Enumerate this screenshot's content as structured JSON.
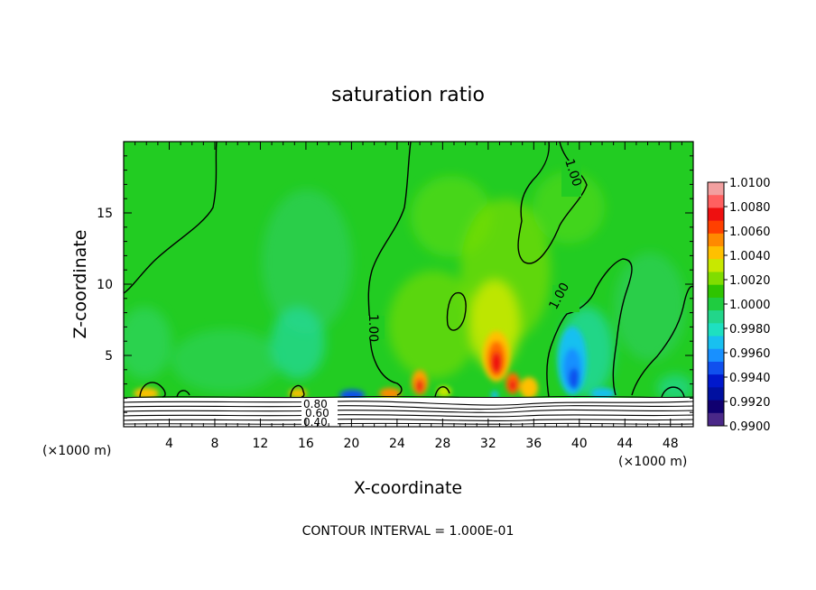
{
  "chart_data": {
    "type": "heatmap",
    "title": "saturation ratio",
    "xlabel": "X-coordinate",
    "ylabel": "Z-coordinate",
    "x_unit_left": "(×1000 m)",
    "x_unit_right": "(×1000 m)",
    "footer": "CONTOUR INTERVAL = 1.000E-01",
    "xlim": [
      0,
      50
    ],
    "ylim": [
      0,
      20
    ],
    "x_ticks": [
      "4",
      "8",
      "12",
      "16",
      "20",
      "24",
      "28",
      "32",
      "36",
      "40",
      "44",
      "48"
    ],
    "y_ticks": [
      "5",
      "10",
      "15"
    ],
    "colorbar": {
      "labels": [
        "1.0100",
        "1.0080",
        "1.0060",
        "1.0040",
        "1.0020",
        "1.0000",
        "0.9980",
        "0.9960",
        "0.9940",
        "0.9920",
        "0.9900"
      ],
      "colors": [
        "#f2a0a0",
        "#ff6060",
        "#ee1010",
        "#ff4000",
        "#ff8a00",
        "#ffc000",
        "#c8e800",
        "#80dd00",
        "#2ec400",
        "#1fcc40",
        "#22d68a",
        "#1ee0c0",
        "#18c0f0",
        "#1890ff",
        "#1050ee",
        "#0018cc",
        "#0010a0",
        "#100070",
        "#4a2888"
      ]
    },
    "contour_labels": [
      "1.00",
      "1.00",
      "1.00",
      "0.80",
      "0.60",
      "0.40"
    ]
  },
  "colors": {
    "background_field": "#22cc22",
    "contour_line": "#000000"
  }
}
